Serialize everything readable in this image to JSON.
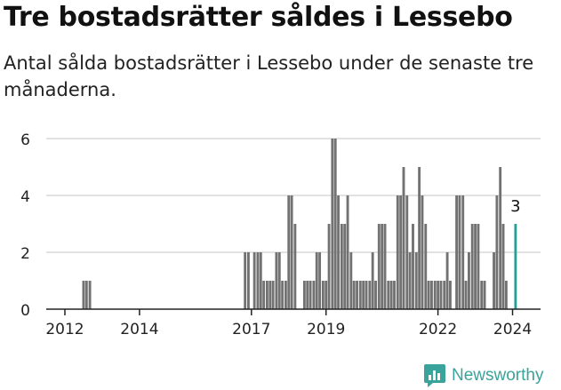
{
  "title": "Tre bostadsrätter såldes i Lessebo",
  "subtitle": "Antal sålda bostadsrätter i Lessebo under de senaste tre månaderna.",
  "brand": {
    "name": "Newsworthy",
    "icon": "newsworthy-logo-icon"
  },
  "colors": {
    "bar": "#727272",
    "highlight": "#2a9d96",
    "grid": "#d9d9d9",
    "axis": "#222222",
    "brand": "#3aa39b"
  },
  "chart_data": {
    "type": "bar",
    "title": "Tre bostadsrätter såldes i Lessebo",
    "xlabel": "",
    "ylabel": "",
    "ylim": [
      0,
      6
    ],
    "yticks": [
      0,
      2,
      4,
      6
    ],
    "xlim": [
      2011.5,
      2024.75
    ],
    "xticks": [
      {
        "label": "2012",
        "value": 2012
      },
      {
        "label": "2014",
        "value": 2014
      },
      {
        "label": "2017",
        "value": 2017
      },
      {
        "label": "2019",
        "value": 2019
      },
      {
        "label": "2022",
        "value": 2022
      },
      {
        "label": "2024",
        "value": 2024
      }
    ],
    "bar_width_years": 0.0833,
    "series": [
      {
        "name": "Sålda bostadsrätter",
        "values": [
          {
            "t": 2012.5,
            "v": 1
          },
          {
            "t": 2012.58,
            "v": 1
          },
          {
            "t": 2012.67,
            "v": 1
          },
          {
            "t": 2016.83,
            "v": 2
          },
          {
            "t": 2016.92,
            "v": 2
          },
          {
            "t": 2017.0,
            "v": 0
          },
          {
            "t": 2017.08,
            "v": 2
          },
          {
            "t": 2017.17,
            "v": 2
          },
          {
            "t": 2017.25,
            "v": 2
          },
          {
            "t": 2017.33,
            "v": 1
          },
          {
            "t": 2017.42,
            "v": 1
          },
          {
            "t": 2017.5,
            "v": 1
          },
          {
            "t": 2017.58,
            "v": 1
          },
          {
            "t": 2017.67,
            "v": 2
          },
          {
            "t": 2017.75,
            "v": 2
          },
          {
            "t": 2017.83,
            "v": 1
          },
          {
            "t": 2017.92,
            "v": 1
          },
          {
            "t": 2018.0,
            "v": 4
          },
          {
            "t": 2018.08,
            "v": 4
          },
          {
            "t": 2018.17,
            "v": 3
          },
          {
            "t": 2018.25,
            "v": 0
          },
          {
            "t": 2018.33,
            "v": 0
          },
          {
            "t": 2018.42,
            "v": 1
          },
          {
            "t": 2018.5,
            "v": 1
          },
          {
            "t": 2018.58,
            "v": 1
          },
          {
            "t": 2018.67,
            "v": 1
          },
          {
            "t": 2018.75,
            "v": 2
          },
          {
            "t": 2018.83,
            "v": 2
          },
          {
            "t": 2018.92,
            "v": 1
          },
          {
            "t": 2019.0,
            "v": 1
          },
          {
            "t": 2019.08,
            "v": 3
          },
          {
            "t": 2019.17,
            "v": 6
          },
          {
            "t": 2019.25,
            "v": 6
          },
          {
            "t": 2019.33,
            "v": 4
          },
          {
            "t": 2019.42,
            "v": 3
          },
          {
            "t": 2019.5,
            "v": 3
          },
          {
            "t": 2019.58,
            "v": 4
          },
          {
            "t": 2019.67,
            "v": 2
          },
          {
            "t": 2019.75,
            "v": 1
          },
          {
            "t": 2019.83,
            "v": 1
          },
          {
            "t": 2019.92,
            "v": 1
          },
          {
            "t": 2020.0,
            "v": 1
          },
          {
            "t": 2020.08,
            "v": 1
          },
          {
            "t": 2020.17,
            "v": 1
          },
          {
            "t": 2020.25,
            "v": 2
          },
          {
            "t": 2020.33,
            "v": 1
          },
          {
            "t": 2020.42,
            "v": 3
          },
          {
            "t": 2020.5,
            "v": 3
          },
          {
            "t": 2020.58,
            "v": 3
          },
          {
            "t": 2020.67,
            "v": 1
          },
          {
            "t": 2020.75,
            "v": 1
          },
          {
            "t": 2020.83,
            "v": 1
          },
          {
            "t": 2020.92,
            "v": 4
          },
          {
            "t": 2021.0,
            "v": 4
          },
          {
            "t": 2021.08,
            "v": 5
          },
          {
            "t": 2021.17,
            "v": 4
          },
          {
            "t": 2021.25,
            "v": 2
          },
          {
            "t": 2021.33,
            "v": 3
          },
          {
            "t": 2021.42,
            "v": 2
          },
          {
            "t": 2021.5,
            "v": 5
          },
          {
            "t": 2021.58,
            "v": 4
          },
          {
            "t": 2021.67,
            "v": 3
          },
          {
            "t": 2021.75,
            "v": 1
          },
          {
            "t": 2021.83,
            "v": 1
          },
          {
            "t": 2021.92,
            "v": 1
          },
          {
            "t": 2022.0,
            "v": 1
          },
          {
            "t": 2022.08,
            "v": 1
          },
          {
            "t": 2022.17,
            "v": 1
          },
          {
            "t": 2022.25,
            "v": 2
          },
          {
            "t": 2022.33,
            "v": 1
          },
          {
            "t": 2022.42,
            "v": 0
          },
          {
            "t": 2022.5,
            "v": 4
          },
          {
            "t": 2022.58,
            "v": 4
          },
          {
            "t": 2022.67,
            "v": 4
          },
          {
            "t": 2022.75,
            "v": 1
          },
          {
            "t": 2022.83,
            "v": 2
          },
          {
            "t": 2022.92,
            "v": 3
          },
          {
            "t": 2023.0,
            "v": 3
          },
          {
            "t": 2023.08,
            "v": 3
          },
          {
            "t": 2023.17,
            "v": 1
          },
          {
            "t": 2023.25,
            "v": 1
          },
          {
            "t": 2023.33,
            "v": 0
          },
          {
            "t": 2023.42,
            "v": 0
          },
          {
            "t": 2023.5,
            "v": 2
          },
          {
            "t": 2023.58,
            "v": 4
          },
          {
            "t": 2023.67,
            "v": 5
          },
          {
            "t": 2023.75,
            "v": 3
          },
          {
            "t": 2023.83,
            "v": 1
          },
          {
            "t": 2023.92,
            "v": 0
          },
          {
            "t": 2024.0,
            "v": 0
          },
          {
            "t": 2024.08,
            "v": 3,
            "highlight": true
          }
        ]
      }
    ],
    "annotations": [
      {
        "label": "3",
        "t": 2024.08,
        "v": 3
      }
    ]
  }
}
